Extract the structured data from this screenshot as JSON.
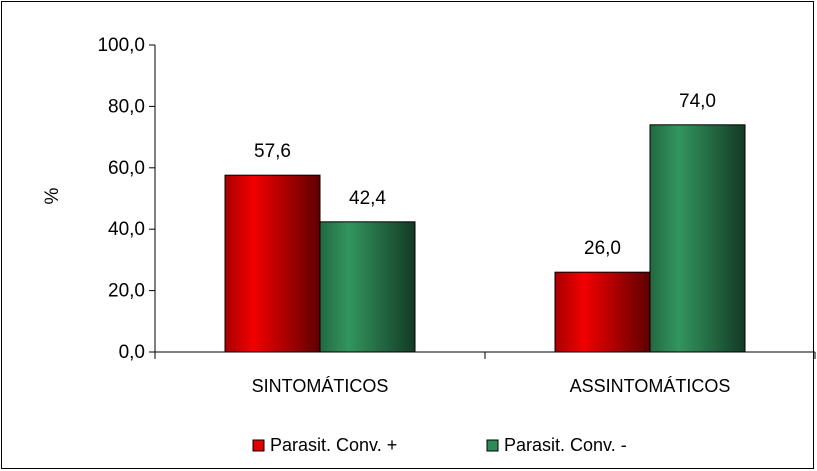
{
  "chart_data": {
    "type": "bar",
    "categories": [
      "SINTOMÁTICOS",
      "ASSINTOMÁTICOS"
    ],
    "series": [
      {
        "name": "Parasit. Conv. +",
        "values": [
          57.6,
          26.0
        ],
        "labels": [
          "57,6",
          "26,0"
        ],
        "color": "#e00000"
      },
      {
        "name": "Parasit. Conv. -",
        "values": [
          42.4,
          74.0
        ],
        "labels": [
          "42,4",
          "74,0"
        ],
        "color": "#2e8b57"
      }
    ],
    "ylabel": "%",
    "ylim": [
      0,
      100
    ],
    "yticks": [
      0,
      20,
      40,
      60,
      80,
      100
    ],
    "ytick_labels": [
      "0,0",
      "20,0",
      "40,0",
      "60,0",
      "80,0",
      "100,0"
    ],
    "grid": false,
    "legend_position": "bottom"
  }
}
